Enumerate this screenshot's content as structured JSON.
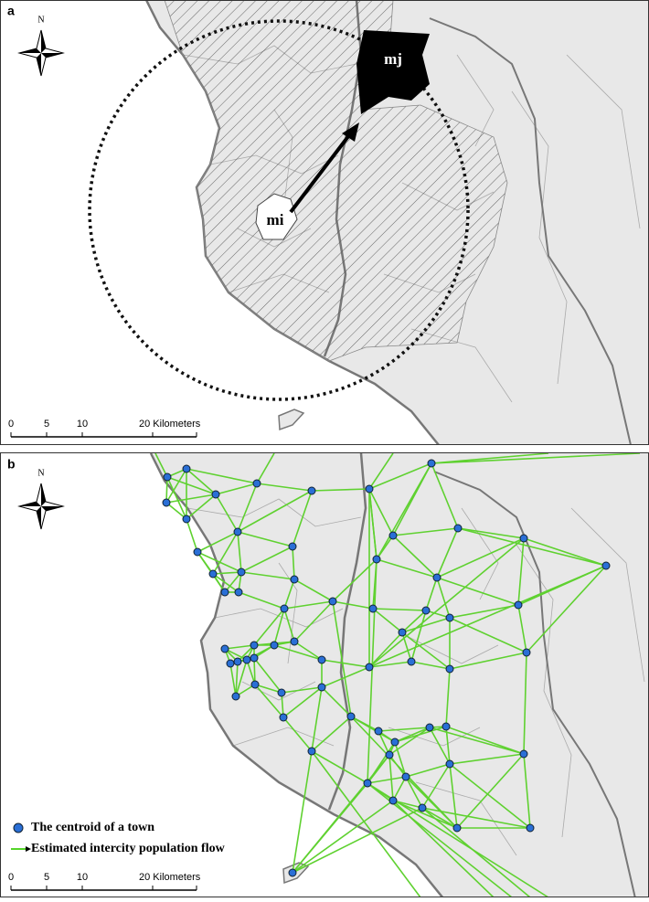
{
  "panels": [
    {
      "label": "a",
      "north": "N",
      "region_labels": [
        "mi",
        "mj"
      ],
      "scale_bar": [
        "0",
        "5",
        "10",
        "20 Kilometers"
      ]
    },
    {
      "label": "b",
      "north": "N",
      "scale_bar": [
        "0",
        "5",
        "10",
        "20 Kilometers"
      ],
      "legend": [
        "The centroid of a town",
        "Estimated intercity population flow"
      ]
    }
  ]
}
